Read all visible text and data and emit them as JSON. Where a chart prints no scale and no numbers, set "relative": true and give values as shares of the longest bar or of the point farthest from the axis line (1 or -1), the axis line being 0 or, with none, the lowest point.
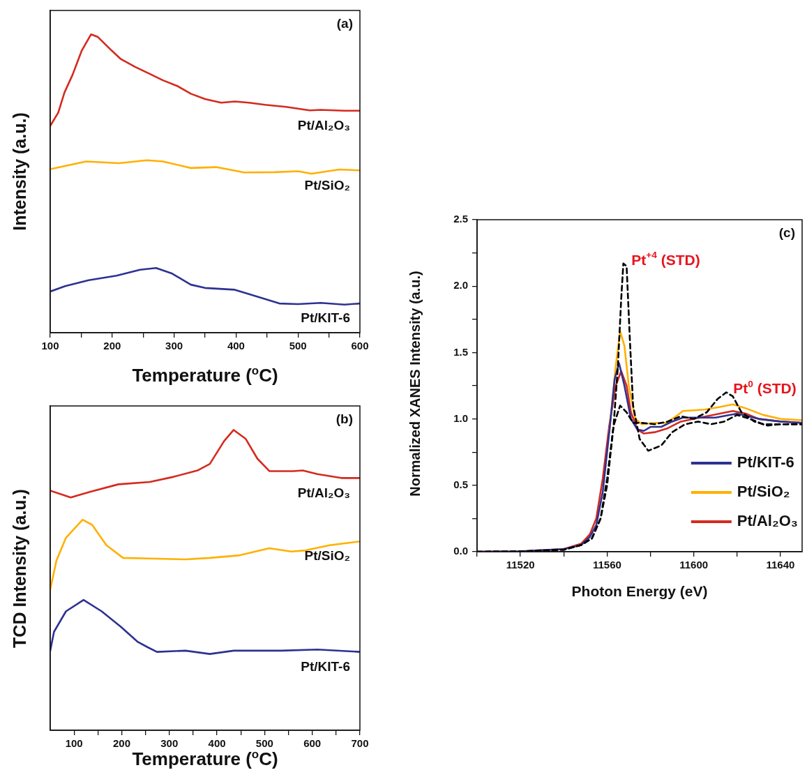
{
  "chart_data": [
    {
      "type": "line",
      "relative": true,
      "xlabel": "Temperature ($^{o}$C)",
      "ylabel": "Intensity (a.u.)",
      "xlim": [
        100,
        600
      ],
      "xticks": [
        100,
        {
          "value": 150,
          "label": null
        },
        200,
        {
          "value": 250,
          "label": null
        },
        300,
        {
          "value": 350,
          "label": null
        },
        400,
        {
          "value": 450,
          "label": null
        },
        500,
        {
          "value": 550,
          "label": null
        },
        600
      ],
      "annotations": [
        "(a)"
      ],
      "series": [
        {
          "name": "Pt/Al₂O₃",
          "color": "#d42a1e",
          "x": [
            100,
            113,
            123,
            136,
            151,
            166,
            177,
            199,
            214,
            237,
            260,
            282,
            305,
            327,
            350,
            376,
            398,
            421,
            447,
            481,
            519,
            537,
            575,
            600
          ],
          "values": [
            0.693,
            0.738,
            0.805,
            0.864,
            0.946,
            1.0,
            0.991,
            0.946,
            0.917,
            0.891,
            0.868,
            0.846,
            0.827,
            0.801,
            0.783,
            0.771,
            0.775,
            0.771,
            0.764,
            0.757,
            0.745,
            0.747,
            0.744,
            0.744
          ]
        },
        {
          "name": "Pt/SiO₂",
          "color": "#ffb000",
          "x": [
            100,
            158,
            211,
            256,
            282,
            327,
            368,
            413,
            462,
            500,
            522,
            567,
            600
          ],
          "values": [
            0.548,
            0.574,
            0.568,
            0.578,
            0.574,
            0.552,
            0.555,
            0.537,
            0.538,
            0.541,
            0.533,
            0.547,
            0.544
          ]
        },
        {
          "name": "Pt/KIT-6",
          "color": "#2e3192",
          "x": [
            100,
            124,
            162,
            207,
            245,
            271,
            297,
            327,
            350,
            398,
            425,
            470,
            500,
            537,
            575,
            600
          ],
          "values": [
            0.138,
            0.156,
            0.176,
            0.191,
            0.211,
            0.217,
            0.198,
            0.161,
            0.15,
            0.144,
            0.127,
            0.098,
            0.096,
            0.1,
            0.094,
            0.098
          ]
        }
      ]
    },
    {
      "type": "line",
      "relative": true,
      "xlabel": "Temperature ($^{o}$C)",
      "ylabel": "TCD Intensity (a.u.)",
      "xlim": [
        50,
        700
      ],
      "xticks": [
        100,
        {
          "value": 150,
          "label": null
        },
        200,
        {
          "value": 250,
          "label": null
        },
        300,
        {
          "value": 350,
          "label": null
        },
        400,
        {
          "value": 450,
          "label": null
        },
        500,
        {
          "value": 550,
          "label": null
        },
        600,
        {
          "value": 650,
          "label": null
        },
        700
      ],
      "annotations": [
        "(b)"
      ],
      "series": [
        {
          "name": "Pt/Al₂O₃",
          "color": "#d42a1e",
          "x": [
            50,
            93,
            133,
            193,
            259,
            309,
            359,
            385,
            415,
            435,
            460,
            485,
            510,
            560,
            580,
            611,
            661,
            700
          ],
          "values": [
            0.798,
            0.775,
            0.794,
            0.819,
            0.827,
            0.844,
            0.865,
            0.887,
            0.963,
            1.0,
            0.971,
            0.904,
            0.863,
            0.863,
            0.865,
            0.853,
            0.84,
            0.84
          ]
        },
        {
          "name": "Pt/SiO₂",
          "color": "#ffb000",
          "x": [
            50,
            63,
            83,
            118,
            138,
            168,
            203,
            259,
            334,
            385,
            445,
            510,
            556,
            586,
            636,
            700
          ],
          "values": [
            0.468,
            0.565,
            0.641,
            0.701,
            0.684,
            0.616,
            0.574,
            0.572,
            0.569,
            0.574,
            0.582,
            0.606,
            0.595,
            0.599,
            0.616,
            0.629
          ]
        },
        {
          "name": "Pt/KIT-6",
          "color": "#2e3192",
          "x": [
            50,
            58,
            83,
            120,
            158,
            198,
            234,
            254,
            274,
            334,
            385,
            435,
            535,
            611,
            700
          ],
          "values": [
            0.265,
            0.328,
            0.396,
            0.434,
            0.396,
            0.345,
            0.294,
            0.277,
            0.261,
            0.265,
            0.254,
            0.265,
            0.265,
            0.269,
            0.261
          ]
        }
      ]
    },
    {
      "type": "line",
      "xlabel": "Photon Energy (eV)",
      "ylabel": "Normalized XANES Intensity (a.u.)",
      "xlim": [
        11500,
        11650
      ],
      "ylim": [
        0,
        2.5
      ],
      "xticks": [
        {
          "value": 11500,
          "label": null
        },
        11520,
        {
          "value": 11540,
          "label": null
        },
        11560,
        {
          "value": 11580,
          "label": null
        },
        11600,
        {
          "value": 11620,
          "label": null
        },
        11640
      ],
      "yticks": [
        {
          "value": 0,
          "label": "0.0"
        },
        {
          "value": 0.25,
          "label": null
        },
        {
          "value": 0.5,
          "label": "0.5"
        },
        {
          "value": 0.75,
          "label": null
        },
        {
          "value": 1,
          "label": "1.0"
        },
        {
          "value": 1.25,
          "label": null
        },
        {
          "value": 1.5,
          "label": "1.5"
        },
        {
          "value": 1.75,
          "label": null
        },
        {
          "value": 2,
          "label": "2.0"
        },
        {
          "value": 2.25,
          "label": null
        },
        {
          "value": 2.5,
          "label": "2.5"
        }
      ],
      "legend": "bottom right",
      "annotations": [
        "(c)",
        {
          "text": "Pt$^{+4}$ (STD)",
          "x": 11568,
          "y": 2.17
        },
        {
          "text": "Pt$^{0}$ (STD)",
          "x": 11615,
          "y": 1.2
        }
      ],
      "series": [
        {
          "color": "#000000",
          "line_style": "dashed",
          "x": [
            11500,
            11520,
            11540,
            11548,
            11553,
            11557,
            11560,
            11563,
            11565,
            11566.5,
            11567.5,
            11569,
            11570.5,
            11572,
            11575,
            11579,
            11585,
            11590,
            11596,
            11602,
            11608,
            11614,
            11620,
            11626,
            11632,
            11640,
            11650
          ],
          "values": [
            0,
            0.002,
            0.015,
            0.05,
            0.1,
            0.25,
            0.5,
            0.95,
            1.4,
            1.9,
            2.17,
            2.15,
            1.6,
            1.1,
            0.85,
            0.76,
            0.8,
            0.9,
            0.96,
            0.98,
            0.96,
            0.98,
            1.03,
            1.0,
            0.96,
            0.96,
            0.96
          ]
        },
        {
          "color": "#000000",
          "line_style": "dashed",
          "x": [
            11500,
            11520,
            11540,
            11548,
            11553,
            11557,
            11560,
            11563,
            11566,
            11569,
            11572,
            11576,
            11582,
            11588,
            11594,
            11600,
            11606,
            11611,
            11615,
            11618,
            11622,
            11628,
            11634,
            11640,
            11650
          ],
          "values": [
            0,
            0.002,
            0.015,
            0.05,
            0.1,
            0.25,
            0.55,
            0.95,
            1.1,
            1.05,
            0.97,
            0.97,
            0.96,
            0.98,
            1.02,
            1.0,
            1.05,
            1.15,
            1.2,
            1.17,
            1.05,
            0.98,
            0.95,
            0.96,
            0.96
          ]
        },
        {
          "name": "Pt/KIT-6",
          "color": "#2e3192",
          "x": [
            11500,
            11520,
            11540,
            11548,
            11552,
            11555,
            11558,
            11561,
            11563.5,
            11565.5,
            11568,
            11571,
            11574,
            11577,
            11580,
            11585,
            11590,
            11595,
            11600,
            11610,
            11620,
            11630,
            11640,
            11650
          ],
          "values": [
            0,
            0.003,
            0.02,
            0.05,
            0.11,
            0.2,
            0.45,
            0.9,
            1.3,
            1.42,
            1.25,
            1.0,
            0.92,
            0.91,
            0.94,
            0.94,
            0.98,
            1.01,
            1.01,
            1.01,
            1.04,
            1.0,
            0.98,
            0.97
          ]
        },
        {
          "name": "Pt/SiO₂",
          "color": "#ffb000",
          "x": [
            11561,
            11564,
            11566,
            11568,
            11570,
            11573,
            11576,
            11582,
            11587,
            11591,
            11595,
            11605,
            11612,
            11618,
            11624,
            11632,
            11640,
            11650
          ],
          "values": [
            0.9,
            1.4,
            1.66,
            1.55,
            1.25,
            1.0,
            0.96,
            0.97,
            0.97,
            1.01,
            1.06,
            1.07,
            1.09,
            1.11,
            1.08,
            1.03,
            1.0,
            0.99
          ]
        },
        {
          "name": "Pt/Al₂O₃",
          "color": "#d42a1e",
          "x": [
            11500,
            11520,
            11540,
            11548,
            11552,
            11555,
            11558,
            11561,
            11564,
            11566.5,
            11569,
            11571,
            11574,
            11577,
            11582,
            11588,
            11594,
            11600,
            11606,
            11612,
            11618,
            11624,
            11630,
            11640,
            11650
          ],
          "values": [
            0,
            0.003,
            0.02,
            0.06,
            0.13,
            0.25,
            0.55,
            0.95,
            1.25,
            1.36,
            1.25,
            1.05,
            0.92,
            0.89,
            0.9,
            0.93,
            0.98,
            1.0,
            1.02,
            1.04,
            1.06,
            1.04,
            1.0,
            0.98,
            0.97
          ]
        }
      ]
    }
  ]
}
